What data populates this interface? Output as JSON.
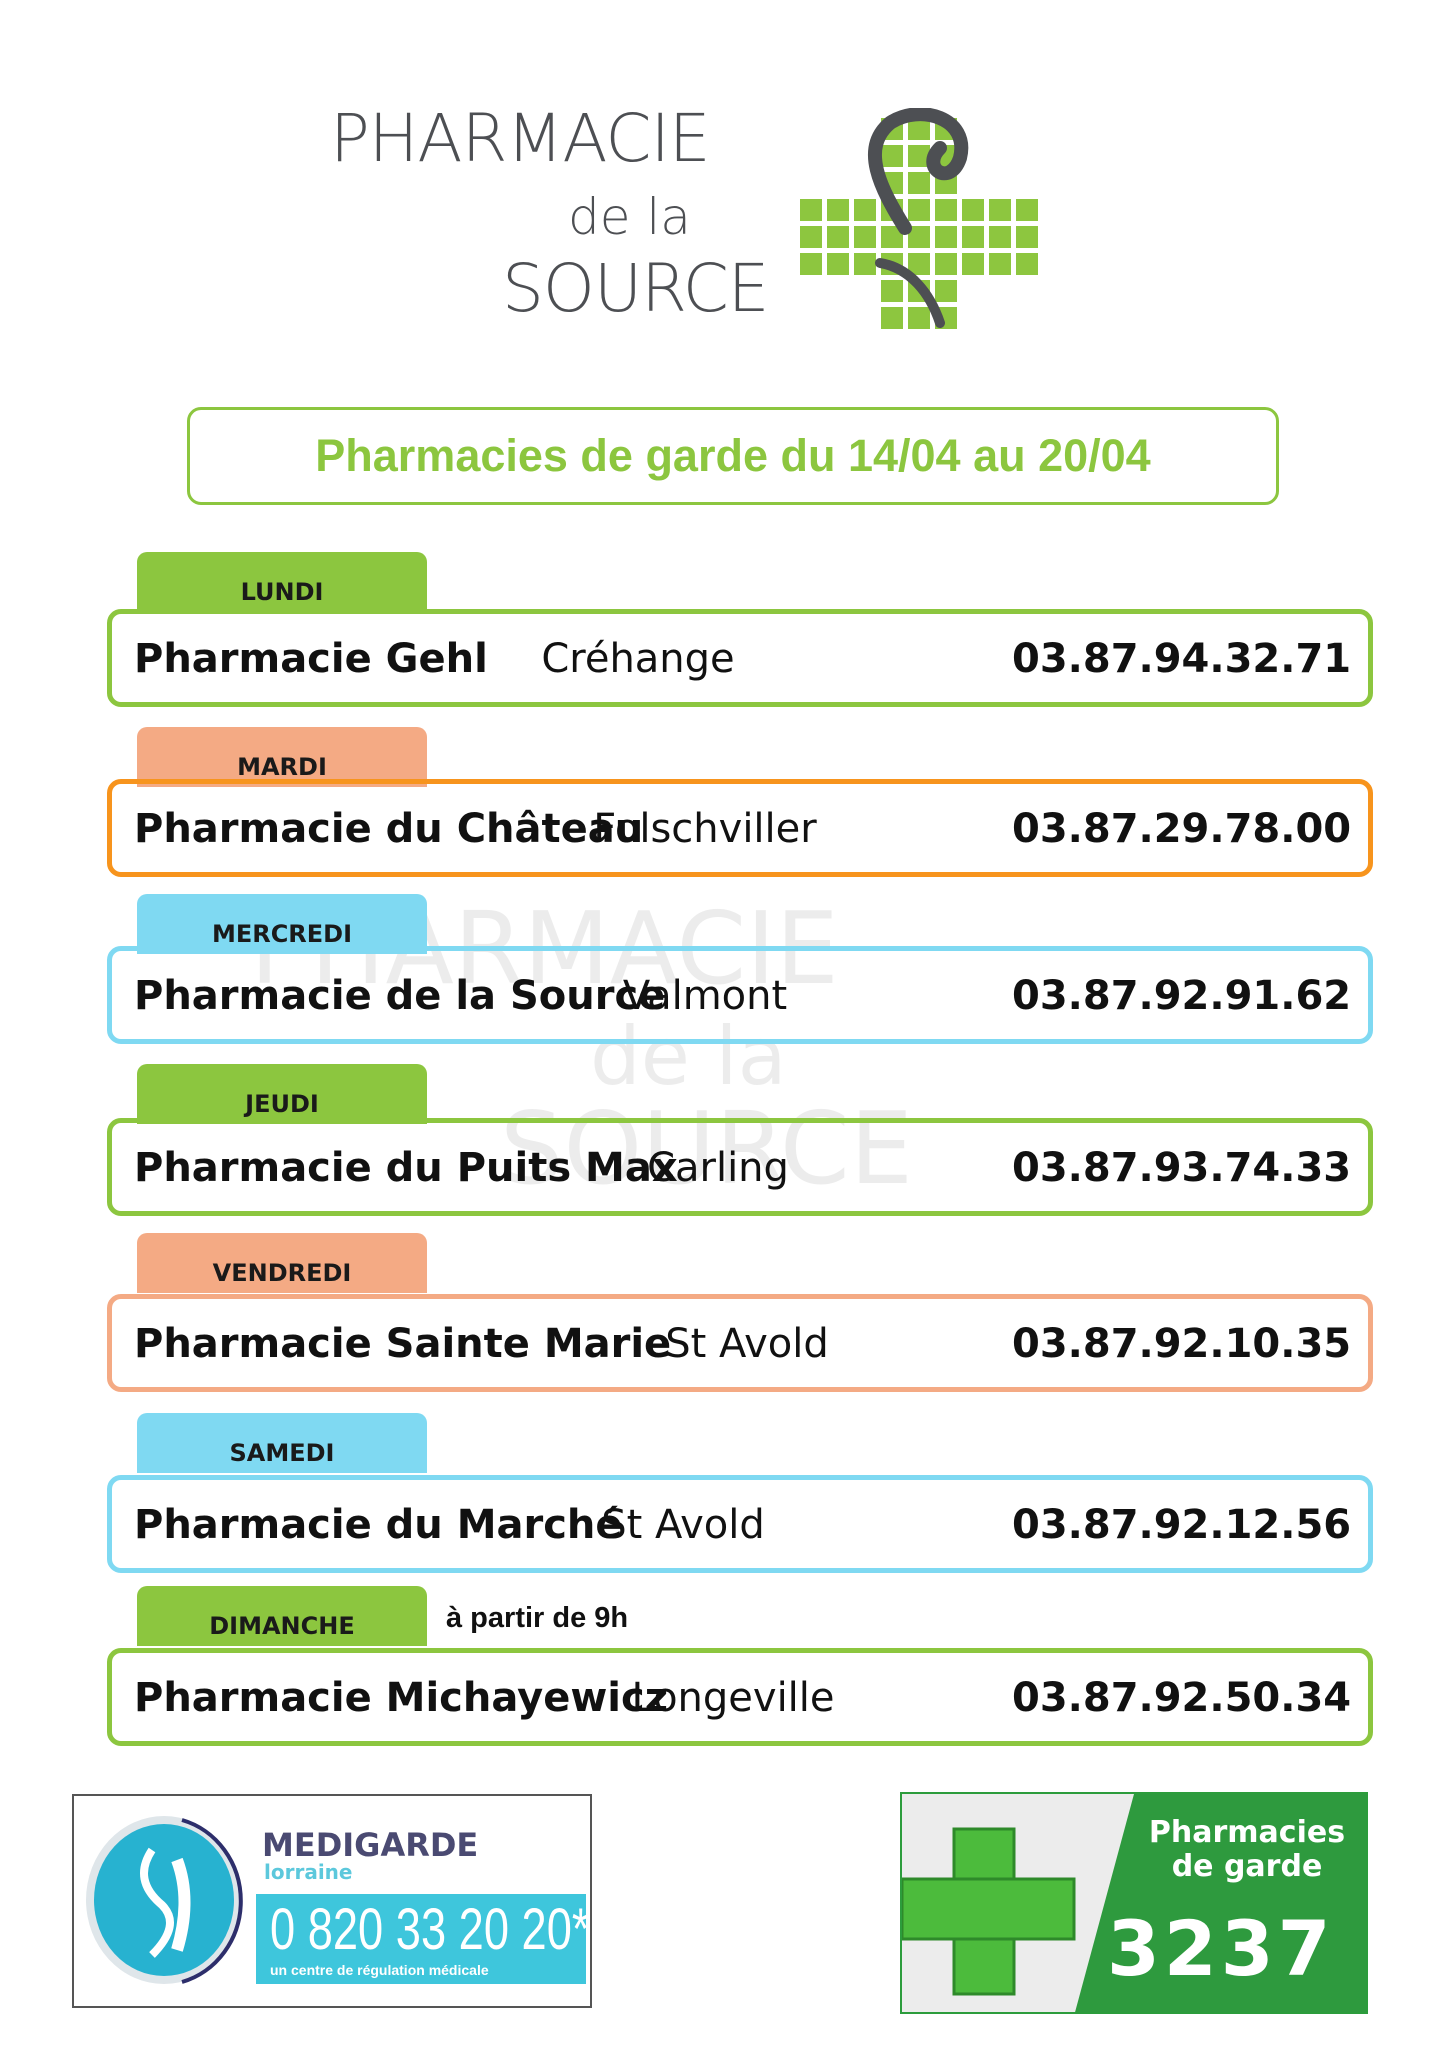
{
  "logo": {
    "line1": "PHARMACIE",
    "line2": "de la",
    "line3": "SOURCE",
    "green": "#8dc63f",
    "grey": "#4d4f53"
  },
  "title": "Pharmacies de garde du 14/04 au 20/04",
  "colors": {
    "green": "#8cc63f",
    "orange": "#f7941d",
    "salmon": "#f4aa84",
    "cyan": "#7fd9f2"
  },
  "days": [
    {
      "day": "LUNDI",
      "name": "Pharmacie Gehl",
      "town": "Créhange",
      "phone": "03.87.94.32.71",
      "tab_color": "#8cc63f",
      "border_color": "#8cc63f"
    },
    {
      "day": "MARDI",
      "name": "Pharmacie du Château",
      "town": "Folschviller",
      "phone": "03.87.29.78.00",
      "tab_color": "#f4aa84",
      "border_color": "#f7941d"
    },
    {
      "day": "MERCREDI",
      "name": "Pharmacie de la Source",
      "town": "Valmont",
      "phone": "03.87.92.91.62",
      "tab_color": "#7fd9f2",
      "border_color": "#7fd9f2"
    },
    {
      "day": "JEUDI",
      "name": "Pharmacie du Puits Max",
      "town": "Carling",
      "phone": "03.87.93.74.33",
      "tab_color": "#8cc63f",
      "border_color": "#8cc63f"
    },
    {
      "day": "VENDREDI",
      "name": "Pharmacie Sainte Marie",
      "town": "St Avold",
      "phone": "03.87.92.10.35",
      "tab_color": "#f4aa84",
      "border_color": "#f4aa84"
    },
    {
      "day": "SAMEDI",
      "name": "Pharmacie du Marché",
      "town": "St Avold",
      "phone": "03.87.92.12.56",
      "tab_color": "#7fd9f2",
      "border_color": "#7fd9f2"
    },
    {
      "day": "DIMANCHE",
      "name": "Pharmacie Michayewicz",
      "town": "Longeville",
      "phone": "03.87.92.50.34",
      "tab_color": "#8cc63f",
      "border_color": "#8cc63f",
      "note": "à partir de 9h"
    }
  ],
  "medigarde": {
    "brand": "MEDIGARDE",
    "region": "lorraine",
    "phone": "0 820 33 20 20*",
    "tagline": "un centre de régulation médicale"
  },
  "garde_banner": {
    "line1": "Pharmacies",
    "line2": "de garde",
    "number": "3237"
  }
}
